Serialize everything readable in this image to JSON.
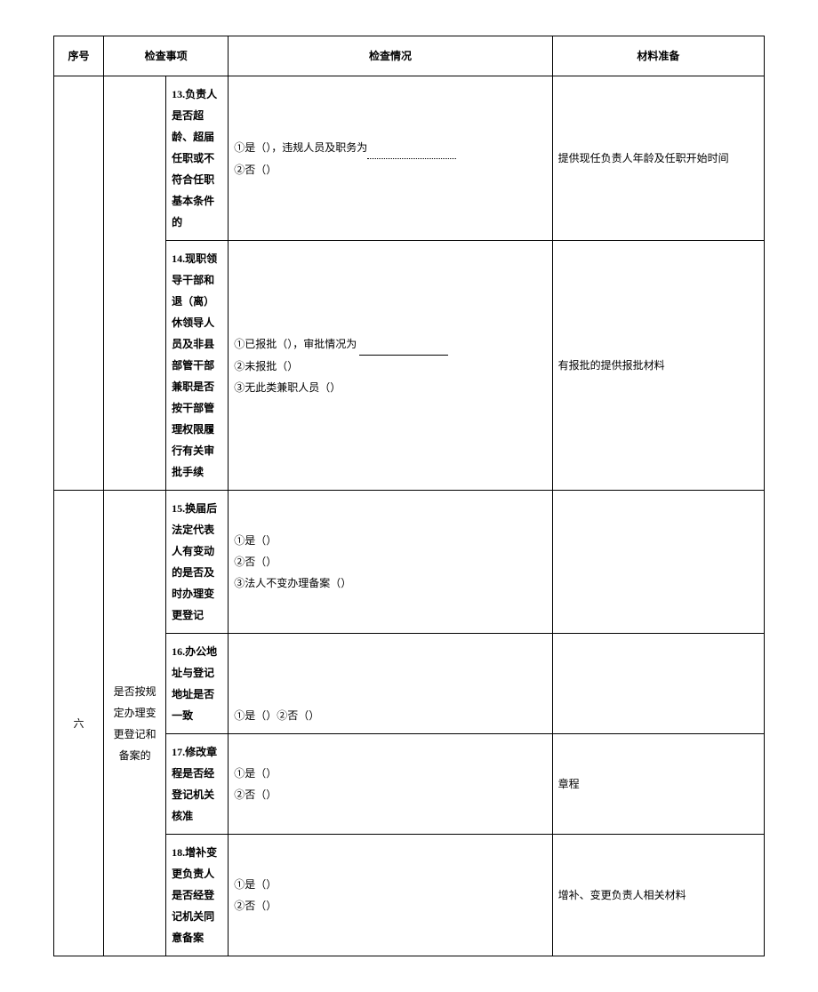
{
  "headers": {
    "index": "序号",
    "item": "检查事项",
    "status": "检查情况",
    "material": "材料准备"
  },
  "section5": {
    "row13": {
      "item": "13.负责人是否超龄、超届任职或不符合任职基本条件的",
      "status_line1_prefix": "①是（），违规人员及职务为",
      "status_line2": "②否（）",
      "material": "提供现任负责人年龄及任职开始时间"
    },
    "row14": {
      "item": "14.现职领导干部和退（离）休领导人员及非县部管干部兼职是否按干部管理权限履行有关审批手续",
      "status_line1": "①已报批（），审批情况为",
      "status_line2": "②未报批（）",
      "status_line3": "③无此类兼职人员（）",
      "material": "有报批的提供报批材料"
    }
  },
  "section6": {
    "index": "六",
    "category": "是否按规定办理变更登记和备案的",
    "row15": {
      "item": "15.换届后法定代表人有变动的是否及时办理变更登记",
      "status_line1": "①是（）",
      "status_line2": "②否（）",
      "status_line3": "③法人不变办理备案（）",
      "material": ""
    },
    "row16": {
      "item": "16.办公地址与登记地址是否一致",
      "status_line1": "①是（）②否（）",
      "material": ""
    },
    "row17": {
      "item": "17.修改章程是否经登记机关核准",
      "status_line1": "①是（）",
      "status_line2": "②否（）",
      "material": "章程"
    },
    "row18": {
      "item": "18.增补变更负责人是否经登记机关同意备案",
      "status_line1": "①是（）",
      "status_line2": "②否（）",
      "material": "增补、变更负责人相关材料"
    }
  }
}
